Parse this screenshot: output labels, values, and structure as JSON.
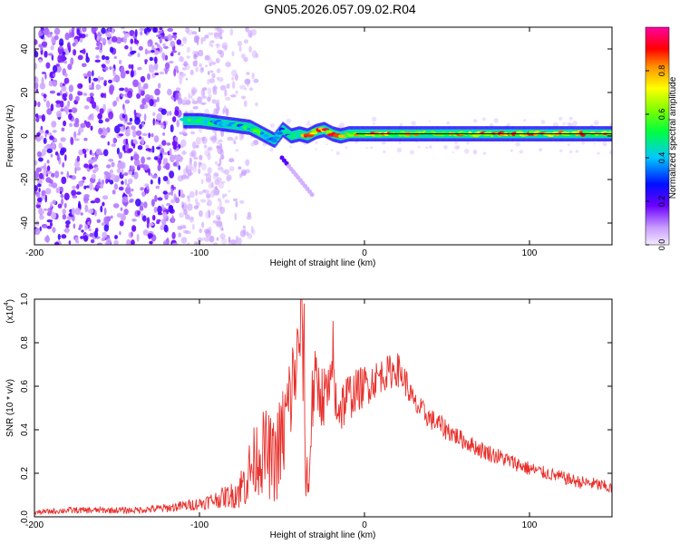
{
  "title": "GN05.2026.057.09.02.R04",
  "chart_data": [
    {
      "type": "heatmap",
      "name": "spectrogram",
      "xlabel": "Height of straight line (km)",
      "ylabel": "Frequency (Hz)",
      "xlim": [
        -200,
        150
      ],
      "ylim": [
        -50,
        50
      ],
      "xticks": [
        -200,
        -100,
        0,
        100
      ],
      "xtick_labels": [
        "-200",
        "-100",
        "0",
        "100"
      ],
      "yticks": [
        -40,
        -20,
        0,
        20,
        40
      ],
      "ytick_labels": [
        "-40",
        "-20",
        "0",
        "20",
        "40"
      ],
      "colorbar": {
        "label": "Normalized spectral amplitude",
        "ticks": [
          0,
          0.2,
          0.4,
          0.6,
          0.8
        ],
        "tick_labels": [
          "0.0",
          "0.2",
          "0.4",
          "0.6",
          "0.8"
        ],
        "range": [
          0,
          1
        ]
      },
      "ridge": {
        "x": [
          -110,
          -100,
          -90,
          -80,
          -70,
          -65,
          -60,
          -55,
          -50,
          -45,
          -40,
          -35,
          -30,
          -25,
          -20,
          -15,
          -10,
          0,
          20,
          50,
          100,
          150
        ],
        "freq": [
          7,
          7,
          6,
          5,
          4,
          2,
          0,
          -2,
          3,
          0,
          1,
          0,
          2,
          3,
          1,
          0,
          1,
          1,
          1,
          1,
          1,
          1
        ],
        "amplitude": [
          0.6,
          0.55,
          0.5,
          0.5,
          0.55,
          0.6,
          0.5,
          0.35,
          0.45,
          0.5,
          0.7,
          0.9,
          0.85,
          0.9,
          0.9,
          0.95,
          0.85,
          0.9,
          0.8,
          0.8,
          0.9,
          0.85
        ]
      },
      "noise_region_x": [
        -200,
        -80
      ],
      "noise_amplitude": 0.2
    },
    {
      "type": "line",
      "name": "snr",
      "xlabel": "Height of straight line (km)",
      "ylabel": "SNR (10 * v/v)",
      "y_multiplier": "(x10^4)",
      "y_multiplier_base": "(x10",
      "y_multiplier_exp": "4",
      "xlim": [
        -200,
        150
      ],
      "ylim": [
        0,
        1.0
      ],
      "xticks": [
        -200,
        -100,
        0,
        100
      ],
      "xtick_labels": [
        "-200",
        "-100",
        "0",
        "100"
      ],
      "yticks": [
        0,
        0.2,
        0.4,
        0.6,
        0.8,
        1.0
      ],
      "ytick_labels": [
        "0.0",
        "0.2",
        "0.4",
        "0.6",
        "0.8",
        "1.0"
      ],
      "color": "#e8302c",
      "x": [
        -200,
        -180,
        -160,
        -140,
        -120,
        -100,
        -90,
        -80,
        -75,
        -70,
        -65,
        -60,
        -55,
        -50,
        -45,
        -40,
        -38,
        -36,
        -34,
        -32,
        -30,
        -25,
        -20,
        -15,
        -10,
        -5,
        0,
        10,
        20,
        25,
        30,
        40,
        50,
        60,
        70,
        80,
        90,
        100,
        110,
        120,
        130,
        140,
        150
      ],
      "y": [
        0.02,
        0.03,
        0.03,
        0.03,
        0.04,
        0.06,
        0.08,
        0.1,
        0.13,
        0.2,
        0.28,
        0.3,
        0.25,
        0.35,
        0.55,
        0.75,
        0.95,
        0.35,
        0.1,
        0.5,
        0.62,
        0.55,
        0.58,
        0.5,
        0.55,
        0.58,
        0.6,
        0.65,
        0.68,
        0.62,
        0.52,
        0.45,
        0.4,
        0.35,
        0.31,
        0.28,
        0.25,
        0.22,
        0.2,
        0.18,
        0.16,
        0.15,
        0.13
      ],
      "noise": [
        0.01,
        0.015,
        0.015,
        0.015,
        0.02,
        0.03,
        0.04,
        0.06,
        0.1,
        0.15,
        0.18,
        0.2,
        0.2,
        0.25,
        0.25,
        0.2,
        0.2,
        0.25,
        0.1,
        0.18,
        0.15,
        0.15,
        0.15,
        0.13,
        0.12,
        0.1,
        0.1,
        0.08,
        0.08,
        0.07,
        0.06,
        0.05,
        0.05,
        0.04,
        0.04,
        0.04,
        0.035,
        0.035,
        0.03,
        0.03,
        0.03,
        0.03,
        0.03
      ]
    }
  ],
  "colors": {
    "spectral_low": "#f0e6ff",
    "spectral_mid": "#6a00e0",
    "axis": "#000000"
  }
}
